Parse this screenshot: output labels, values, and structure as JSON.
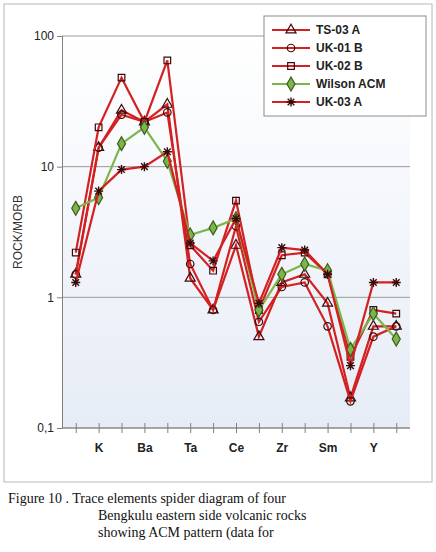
{
  "chart_data": {
    "type": "line",
    "categories": [
      null,
      "K",
      null,
      "Ba",
      null,
      "Ta",
      null,
      "Ce",
      null,
      "Zr",
      null,
      "Sm",
      null,
      "Y",
      null
    ],
    "ylabel": "ROCK/MORB",
    "log": "y",
    "ylim": [
      0.1,
      100
    ],
    "yticks": [
      {
        "value": 0.1,
        "label": "0,1"
      },
      1,
      10,
      100
    ],
    "grid": true,
    "legend": "upper right",
    "series": [
      {
        "name": "TS-03 A",
        "color": "#d42020",
        "marker": "triangle",
        "values": [
          1.5,
          14,
          27,
          22,
          30,
          1.4,
          0.8,
          2.5,
          0.5,
          1.3,
          1.5,
          0.9,
          0.17,
          0.6,
          0.6
        ]
      },
      {
        "name": "UK-01 B",
        "color": "#d42020",
        "marker": "circle",
        "values": [
          1.5,
          14,
          25,
          22,
          26,
          1.8,
          0.8,
          3.5,
          0.65,
          1.2,
          1.3,
          0.6,
          0.16,
          0.5,
          0.6
        ]
      },
      {
        "name": "UK-02 B",
        "color": "#d42020",
        "marker": "square",
        "values": [
          2.2,
          20,
          48,
          22,
          65,
          2.5,
          1.6,
          5.5,
          0.8,
          2.1,
          2.2,
          1.5,
          0.35,
          0.8,
          0.75
        ]
      },
      {
        "name": "Wilson ACM",
        "color": "#7ab648",
        "marker": "diamond",
        "values": [
          4.8,
          5.8,
          15,
          20,
          11,
          3.0,
          3.4,
          4.0,
          0.8,
          1.5,
          1.8,
          1.6,
          0.4,
          0.75,
          0.48
        ]
      },
      {
        "name": "UK-03 A",
        "color": "#d42020",
        "marker": "asterisk",
        "values": [
          1.3,
          6.5,
          9.5,
          10,
          13,
          2.6,
          1.9,
          4.0,
          0.9,
          2.4,
          2.3,
          1.5,
          0.3,
          1.3,
          1.3
        ]
      }
    ],
    "caption": [
      "Figure 10 . Trace elements spider diagram of four",
      "Bengkulu eastern side volcanic rocks",
      "showing ACM pattern (data for"
    ]
  }
}
